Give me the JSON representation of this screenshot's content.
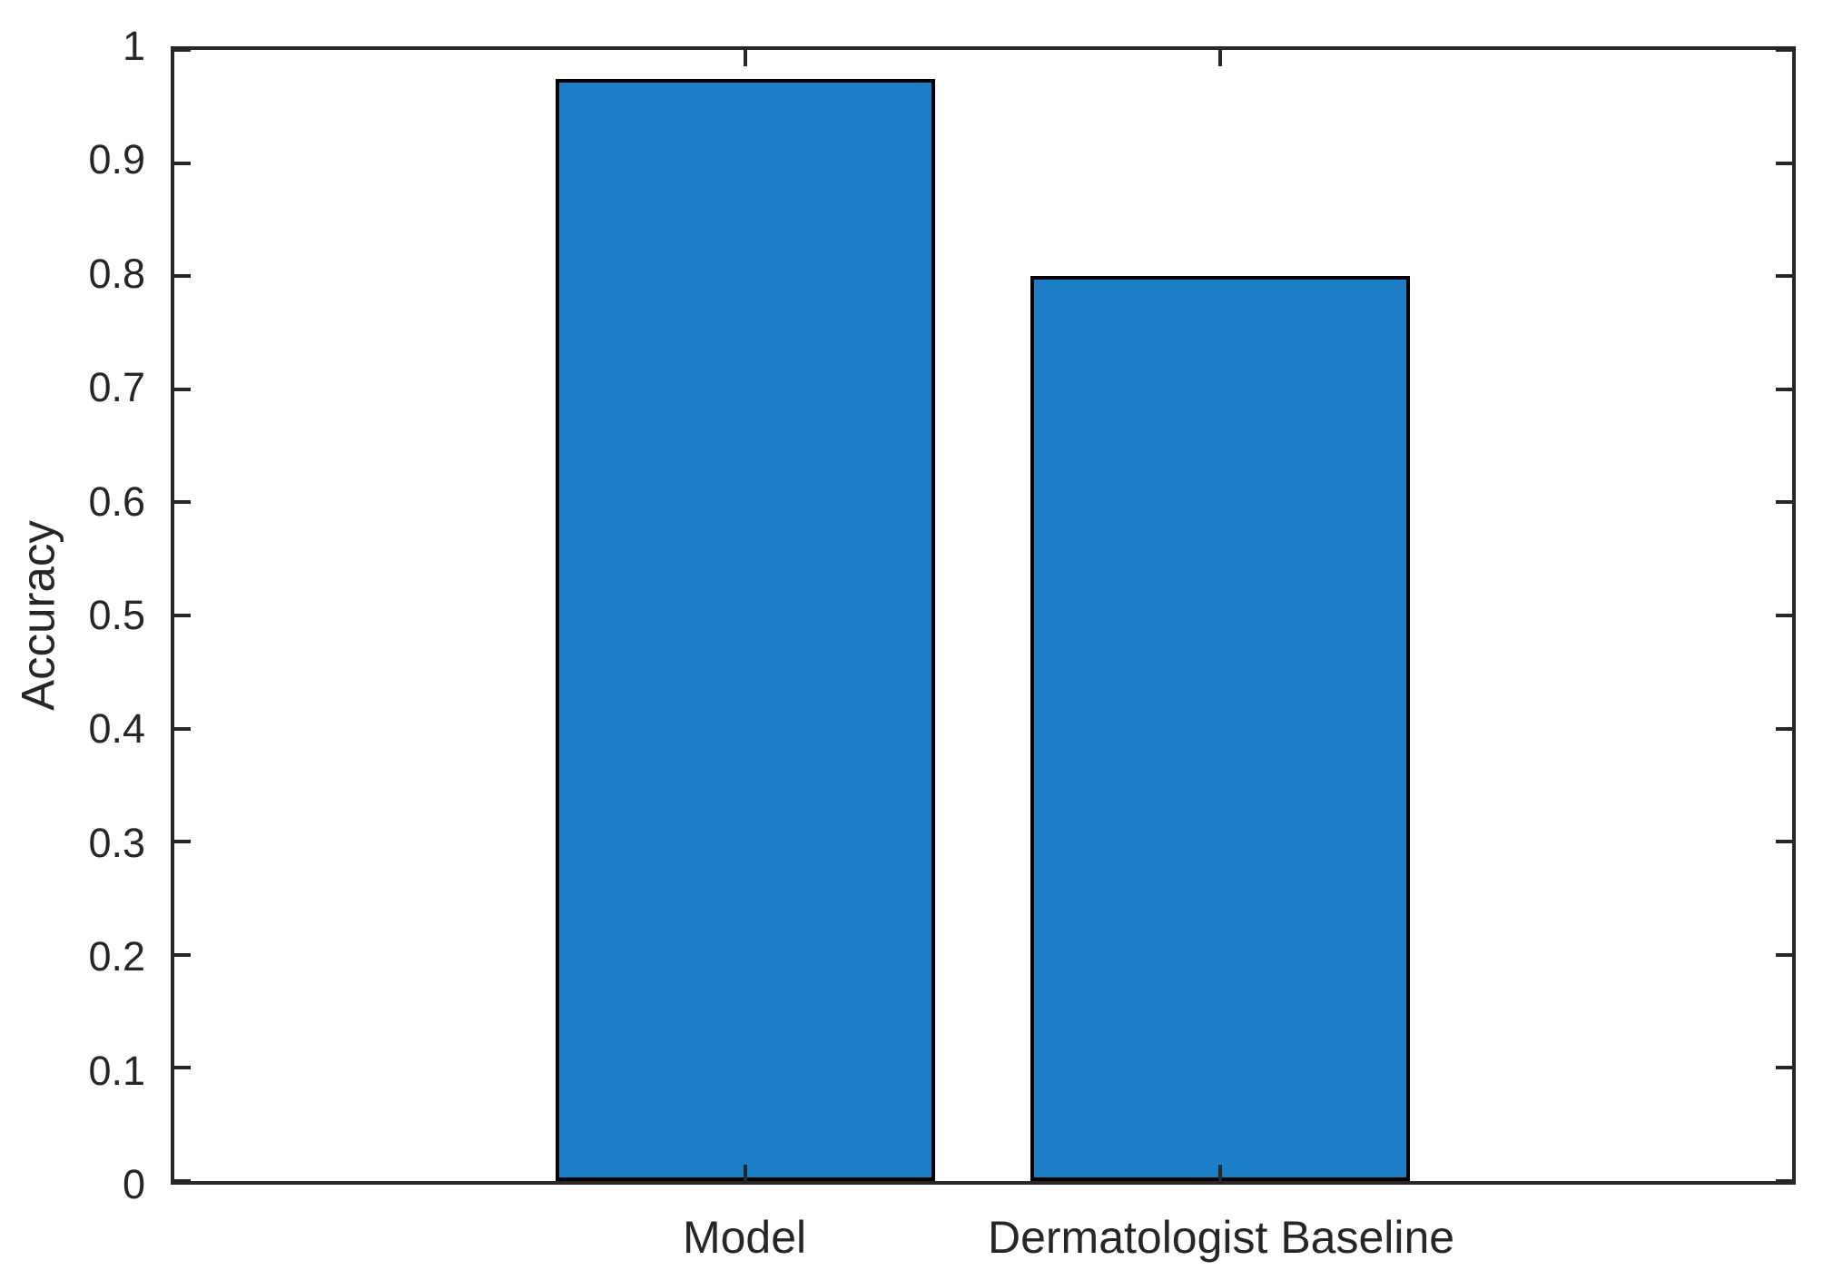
{
  "chart_data": {
    "type": "bar",
    "categories": [
      "Model",
      "Dermatologist Baseline"
    ],
    "values": [
      0.974,
      0.8
    ],
    "title": "",
    "xlabel": "",
    "ylabel": "Accuracy",
    "ylim": [
      0,
      1
    ],
    "yticks": [
      0,
      0.1,
      0.2,
      0.3,
      0.4,
      0.5,
      0.6,
      0.7,
      0.8,
      0.9,
      1
    ],
    "ytick_labels": [
      "0",
      "0.1",
      "0.2",
      "0.3",
      "0.4",
      "0.5",
      "0.6",
      "0.7",
      "0.8",
      "0.9",
      "1"
    ],
    "grid": false,
    "legend": null,
    "box": true,
    "tick_direction": "in",
    "bar_face_color": "#1c7ec6",
    "bar_edge_color": "#000000",
    "axis_color": "#262626",
    "text_color": "#262626",
    "background_color": "#ffffff"
  }
}
